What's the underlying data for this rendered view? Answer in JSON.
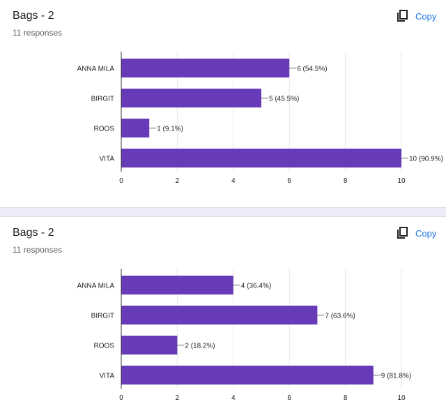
{
  "copy_label": "Copy",
  "icons": {
    "copy": "copy-icon"
  },
  "colors": {
    "bar": "#673ab7",
    "accent": "#1a73e8"
  },
  "chart_data": [
    {
      "type": "bar",
      "orientation": "horizontal",
      "title": "Bags - 2",
      "subtitle": "11 responses",
      "categories": [
        "ANNA MILA",
        "BIRGIT",
        "ROOS",
        "VITA"
      ],
      "values": [
        6,
        5,
        1,
        10
      ],
      "value_labels": [
        "6 (54.5%)",
        "5 (45.5%)",
        "1 (9.1%)",
        "10 (90.9%)"
      ],
      "xlim": [
        0,
        10
      ],
      "xticks": [
        0,
        2,
        4,
        6,
        8,
        10
      ],
      "grid": true
    },
    {
      "type": "bar",
      "orientation": "horizontal",
      "title": "Bags - 2",
      "subtitle": "11 responses",
      "categories": [
        "ANNA MILA",
        "BIRGIT",
        "ROOS",
        "VITA"
      ],
      "values": [
        4,
        7,
        2,
        9
      ],
      "value_labels": [
        "4 (36.4%)",
        "7 (63.6%)",
        "2 (18.2%)",
        "9 (81.8%)"
      ],
      "xlim": [
        0,
        10
      ],
      "xticks": [
        0,
        2,
        4,
        6,
        8,
        10
      ],
      "grid": true
    }
  ]
}
